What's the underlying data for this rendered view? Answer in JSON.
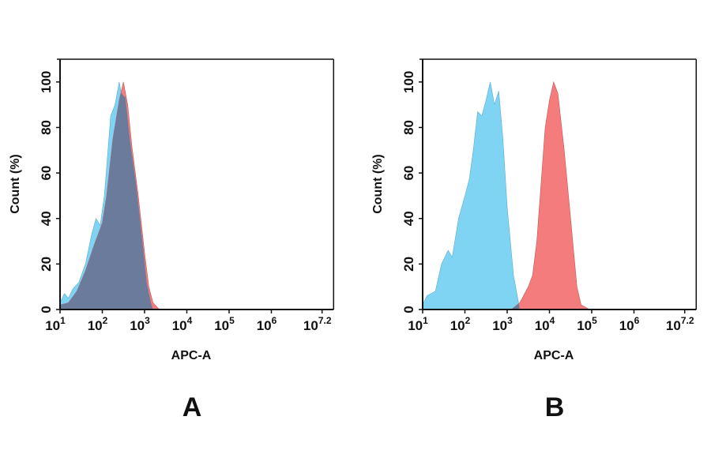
{
  "chart_data": [
    {
      "type": "area",
      "panel_label": "A",
      "xlabel": "APC-A",
      "ylabel": "Count  (%)",
      "xscale": "log",
      "xlim": [
        10,
        25000000
      ],
      "ylim": [
        0,
        110
      ],
      "x_ticks": [
        {
          "base": "10",
          "exp": "1"
        },
        {
          "base": "10",
          "exp": "2"
        },
        {
          "base": "10",
          "exp": "3"
        },
        {
          "base": "10",
          "exp": "4"
        },
        {
          "base": "10",
          "exp": "5"
        },
        {
          "base": "10",
          "exp": "6"
        },
        {
          "base": "10",
          "exp": "7.2"
        }
      ],
      "y_ticks": [
        "0",
        "20",
        "40",
        "60",
        "80",
        "100"
      ],
      "grid": false,
      "overlap_color": "#6b7b9c",
      "series": [
        {
          "color": "#7fd3f3",
          "x": [
            10,
            12.6,
            15.8,
            20,
            28,
            40,
            56,
            71,
            89,
            112,
            158,
            200,
            251,
            282,
            355,
            447,
            631,
            891,
            1122,
            1413,
            1585
          ],
          "y": [
            3,
            7,
            5,
            9,
            12,
            20,
            33,
            40,
            37,
            50,
            85,
            90,
            100,
            95,
            93,
            75,
            55,
            30,
            12,
            3,
            0
          ]
        },
        {
          "color": "#f47c7c",
          "x": [
            10,
            15.8,
            25,
            40,
            63,
            100,
            126,
            178,
            251,
            316,
            398,
            501,
            708,
            1000,
            1259,
            1585,
            1995,
            2239
          ],
          "y": [
            2,
            3,
            8,
            17,
            28,
            38,
            50,
            75,
            92,
            100,
            90,
            72,
            50,
            25,
            10,
            3,
            1,
            0
          ]
        }
      ]
    },
    {
      "type": "area",
      "panel_label": "B",
      "xlabel": "APC-A",
      "ylabel": "Count  (%)",
      "xscale": "log",
      "xlim": [
        10,
        25000000
      ],
      "ylim": [
        0,
        110
      ],
      "x_ticks": [
        {
          "base": "10",
          "exp": "1"
        },
        {
          "base": "10",
          "exp": "2"
        },
        {
          "base": "10",
          "exp": "3"
        },
        {
          "base": "10",
          "exp": "4"
        },
        {
          "base": "10",
          "exp": "5"
        },
        {
          "base": "10",
          "exp": "6"
        },
        {
          "base": "10",
          "exp": "7.2"
        }
      ],
      "y_ticks": [
        "0",
        "20",
        "40",
        "60",
        "80",
        "100"
      ],
      "grid": false,
      "overlap_color": "#6b7b9c",
      "series": [
        {
          "color": "#7fd3f3",
          "x": [
            10,
            12.6,
            20,
            28,
            40,
            50,
            71,
            100,
            126,
            158,
            200,
            251,
            316,
            398,
            501,
            631,
            794,
            1000,
            1413,
            1995
          ],
          "y": [
            2,
            6,
            8,
            20,
            26,
            23,
            40,
            50,
            57,
            70,
            87,
            85,
            92,
            100,
            90,
            96,
            75,
            45,
            15,
            0
          ]
        },
        {
          "color": "#f47c7c",
          "x": [
            1259,
            1995,
            3162,
            3981,
            5012,
            6310,
            7943,
            10000,
            12589,
            15849,
            22387,
            31623,
            44668,
            56234,
            70795,
            89125
          ],
          "y": [
            0,
            3,
            10,
            15,
            30,
            55,
            80,
            92,
            100,
            95,
            70,
            40,
            10,
            2,
            1,
            0
          ]
        }
      ]
    }
  ]
}
